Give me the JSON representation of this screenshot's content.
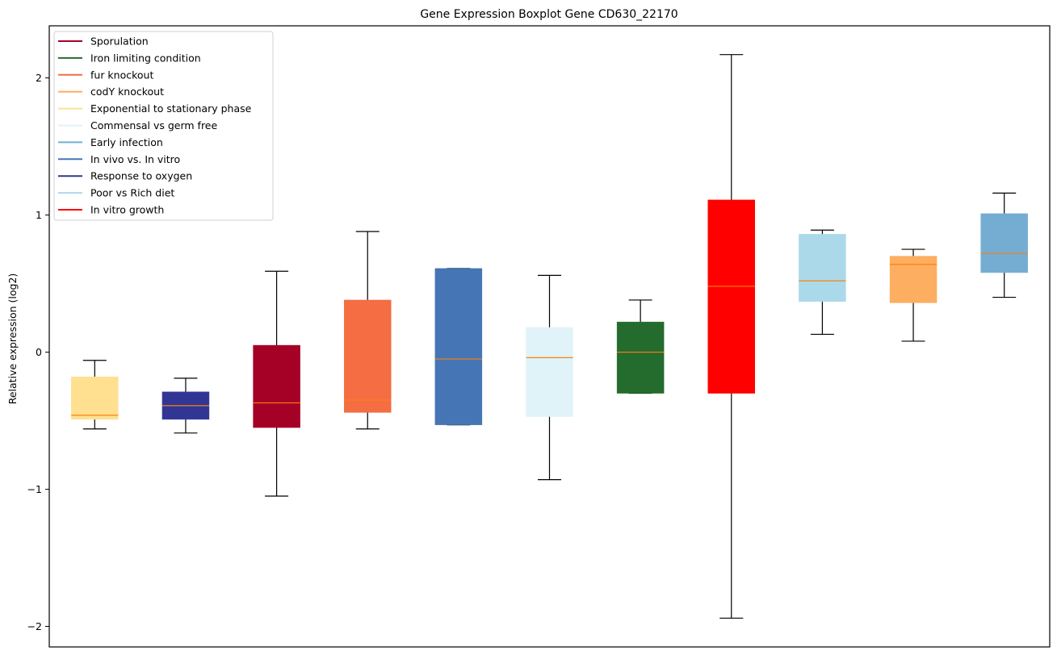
{
  "chart_data": {
    "type": "boxplot",
    "title": "Gene Expression Boxplot Gene CD630_22170",
    "xlabel": "",
    "ylabel": "Relative expression (log2)",
    "ylim": [
      -2.15,
      2.38
    ],
    "yticks": [
      2,
      1,
      0,
      -1,
      -2
    ],
    "ytick_labels": [
      "2",
      "1",
      "0",
      "−1",
      "−2"
    ],
    "grid": false,
    "legend_position": "top-left",
    "median_color": "#ff7f0e",
    "legend": [
      {
        "label": "Sporulation",
        "color": "#a50026"
      },
      {
        "label": "Iron limiting condition",
        "color": "#246b2e"
      },
      {
        "label": "fur knockout",
        "color": "#f46d43"
      },
      {
        "label": "codY knockout",
        "color": "#fdae61"
      },
      {
        "label": "Exponential to stationary phase",
        "color": "#fee090"
      },
      {
        "label": "Commensal vs germ free",
        "color": "#e0f3f8"
      },
      {
        "label": "Early infection",
        "color": "#74add1"
      },
      {
        "label": "In vivo vs. In vitro",
        "color": "#4575b4"
      },
      {
        "label": "Response to oxygen",
        "color": "#313695"
      },
      {
        "label": "Poor vs Rich diet",
        "color": "#abd9e9"
      },
      {
        "label": "In vitro growth",
        "color": "#ff0000"
      }
    ],
    "boxes": [
      {
        "group": "Exponential to stationary phase",
        "color": "#fee090",
        "whisker_low": -0.56,
        "q1": -0.49,
        "median": -0.46,
        "q3": -0.18,
        "whisker_high": -0.06
      },
      {
        "group": "Response to oxygen",
        "color": "#313695",
        "whisker_low": -0.59,
        "q1": -0.49,
        "median": -0.39,
        "q3": -0.29,
        "whisker_high": -0.19
      },
      {
        "group": "Sporulation",
        "color": "#a50026",
        "whisker_low": -1.05,
        "q1": -0.55,
        "median": -0.37,
        "q3": 0.05,
        "whisker_high": 0.59
      },
      {
        "group": "fur knockout",
        "color": "#f46d43",
        "whisker_low": -0.56,
        "q1": -0.44,
        "median": -0.35,
        "q3": 0.38,
        "whisker_high": 0.88
      },
      {
        "group": "In vivo vs. In vitro",
        "color": "#4575b4",
        "whisker_low": -0.53,
        "q1": -0.53,
        "median": -0.05,
        "q3": 0.61,
        "whisker_high": 0.61
      },
      {
        "group": "Commensal vs germ free",
        "color": "#e0f3f8",
        "whisker_low": -0.93,
        "q1": -0.47,
        "median": -0.04,
        "q3": 0.18,
        "whisker_high": 0.56
      },
      {
        "group": "Iron limiting condition",
        "color": "#246b2e",
        "whisker_low": -0.3,
        "q1": -0.3,
        "median": 0.0,
        "q3": 0.22,
        "whisker_high": 0.38
      },
      {
        "group": "In vitro growth",
        "color": "#ff0000",
        "whisker_low": -1.94,
        "q1": -0.3,
        "median": 0.48,
        "q3": 1.11,
        "whisker_high": 2.17
      },
      {
        "group": "Poor vs Rich diet",
        "color": "#abd9e9",
        "whisker_low": 0.13,
        "q1": 0.37,
        "median": 0.52,
        "q3": 0.86,
        "whisker_high": 0.89
      },
      {
        "group": "codY knockout",
        "color": "#fdae61",
        "whisker_low": 0.08,
        "q1": 0.36,
        "median": 0.64,
        "q3": 0.7,
        "whisker_high": 0.75
      },
      {
        "group": "Early infection",
        "color": "#74add1",
        "whisker_low": 0.4,
        "q1": 0.58,
        "median": 0.72,
        "q3": 1.01,
        "whisker_high": 1.16
      }
    ]
  }
}
